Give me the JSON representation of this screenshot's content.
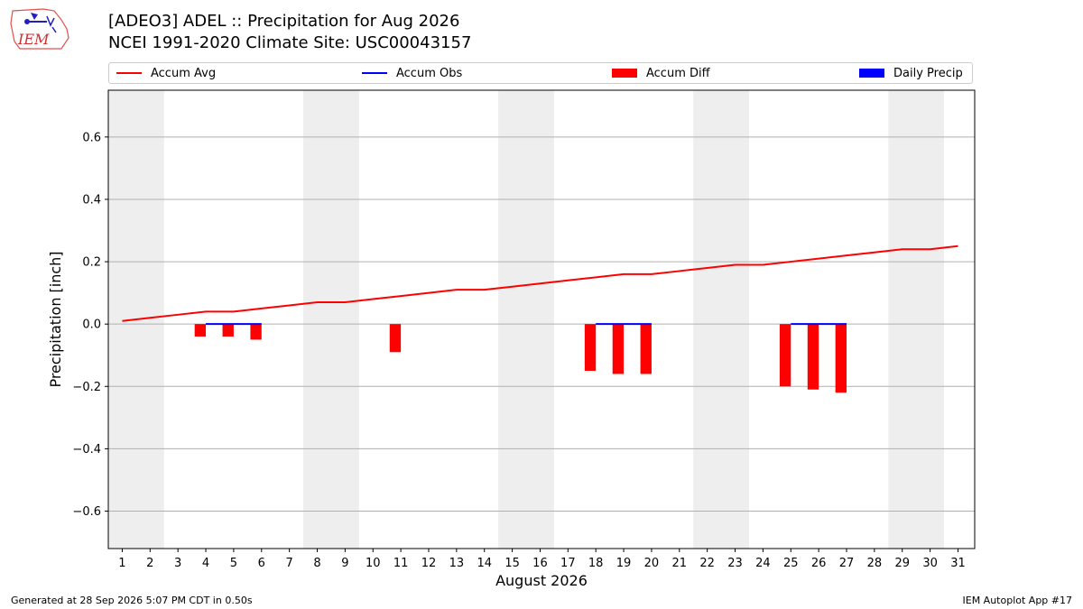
{
  "logo": {
    "text": "IEM"
  },
  "header": {
    "title": "[ADEO3] ADEL :: Precipitation for Aug 2026",
    "subtitle": "NCEI 1991-2020 Climate Site: USC00043157"
  },
  "legend": [
    {
      "label": "Accum Avg",
      "kind": "line",
      "color": "#ff0000"
    },
    {
      "label": "Accum Obs",
      "kind": "line",
      "color": "#0000ff"
    },
    {
      "label": "Accum Diff",
      "kind": "box",
      "color": "#ff0000"
    },
    {
      "label": "Daily Precip",
      "kind": "box",
      "color": "#0000ff"
    }
  ],
  "footer": {
    "left": "Generated at 28 Sep 2026 5:07 PM CDT in 0.50s",
    "right": "IEM Autoplot App #17"
  },
  "chart_data": {
    "type": "bar",
    "xlabel": "August 2026",
    "ylabel": "Precipitation [inch]",
    "x": [
      1,
      2,
      3,
      4,
      5,
      6,
      7,
      8,
      9,
      10,
      11,
      12,
      13,
      14,
      15,
      16,
      17,
      18,
      19,
      20,
      21,
      22,
      23,
      24,
      25,
      26,
      27,
      28,
      29,
      30,
      31
    ],
    "xlim": [
      0.5,
      31.6
    ],
    "ylim": [
      -0.72,
      0.75
    ],
    "yticks": [
      -0.6,
      -0.4,
      -0.2,
      0.0,
      0.2,
      0.4,
      0.6
    ],
    "ytick_labels": [
      "−0.6",
      "−0.4",
      "−0.2",
      "0.0",
      "0.2",
      "0.4",
      "0.6"
    ],
    "grid": true,
    "legend_position": "top",
    "weekend_shading": [
      [
        0.5,
        2.5
      ],
      [
        7.5,
        9.5
      ],
      [
        14.5,
        16.5
      ],
      [
        21.5,
        23.5
      ],
      [
        28.5,
        30.5
      ]
    ],
    "series": [
      {
        "name": "Accum Avg",
        "kind": "line",
        "color": "#ff0000",
        "x": [
          1,
          2,
          3,
          4,
          5,
          6,
          7,
          8,
          9,
          10,
          11,
          12,
          13,
          14,
          15,
          16,
          17,
          18,
          19,
          20,
          21,
          22,
          23,
          24,
          25,
          26,
          27,
          28,
          29,
          30,
          31
        ],
        "values": [
          0.01,
          0.02,
          0.03,
          0.04,
          0.04,
          0.05,
          0.06,
          0.07,
          0.07,
          0.08,
          0.09,
          0.1,
          0.11,
          0.11,
          0.12,
          0.13,
          0.14,
          0.15,
          0.16,
          0.16,
          0.17,
          0.18,
          0.19,
          0.19,
          0.2,
          0.21,
          0.22,
          0.23,
          0.24,
          0.24,
          0.25
        ]
      },
      {
        "name": "Accum Obs",
        "kind": "line",
        "color": "#0000ff",
        "segments": [
          {
            "x": [
              4,
              5,
              6
            ],
            "values": [
              0.0,
              0.0,
              0.0
            ]
          },
          {
            "x": [
              18,
              19,
              20
            ],
            "values": [
              0.0,
              0.0,
              0.0
            ]
          },
          {
            "x": [
              25,
              26,
              27
            ],
            "values": [
              0.0,
              0.0,
              0.0
            ]
          }
        ]
      },
      {
        "name": "Accum Diff",
        "kind": "bar",
        "color": "#ff0000",
        "x": [
          4,
          5,
          6,
          11,
          18,
          19,
          20,
          25,
          26,
          27
        ],
        "values": [
          -0.04,
          -0.04,
          -0.05,
          -0.09,
          -0.15,
          -0.16,
          -0.16,
          -0.2,
          -0.21,
          -0.22
        ]
      },
      {
        "name": "Daily Precip",
        "kind": "bar",
        "color": "#0000ff",
        "x": [],
        "values": []
      }
    ]
  }
}
